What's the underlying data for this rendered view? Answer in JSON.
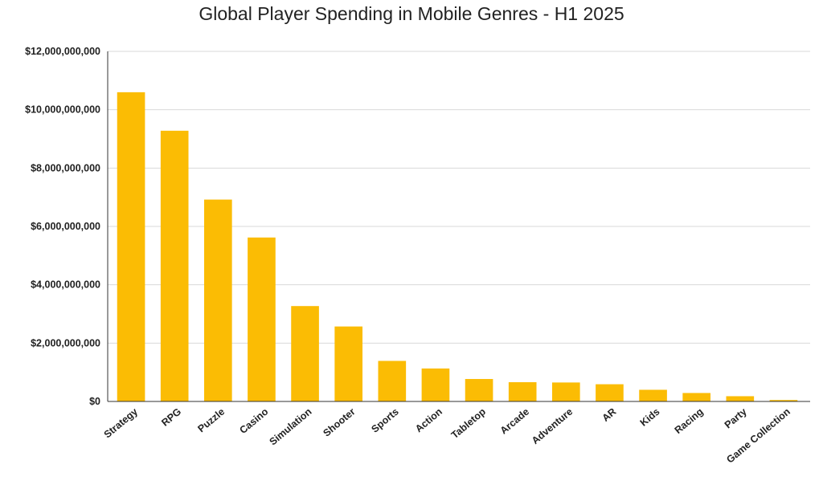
{
  "chart_data": {
    "type": "bar",
    "title": "Global Player Spending in Mobile Genres - H1 2025",
    "xlabel": "",
    "ylabel": "",
    "ylim": [
      0,
      12000000000
    ],
    "yticks": [
      0,
      2000000000,
      4000000000,
      6000000000,
      8000000000,
      10000000000,
      12000000000
    ],
    "ytick_labels": [
      "$0",
      "$2,000,000,000",
      "$4,000,000,000",
      "$6,000,000,000",
      "$8,000,000,000",
      "$10,000,000,000",
      "$12,000,000,000"
    ],
    "categories": [
      "Strategy",
      "RPG",
      "Puzzle",
      "Casino",
      "Simulation",
      "Shooter",
      "Sports",
      "Action",
      "Tabletop",
      "Arcade",
      "Adventure",
      "AR",
      "Kids",
      "Racing",
      "Party",
      "Game Collection"
    ],
    "values": [
      10600000000,
      9280000000,
      6920000000,
      5620000000,
      3270000000,
      2570000000,
      1390000000,
      1130000000,
      770000000,
      660000000,
      650000000,
      590000000,
      400000000,
      290000000,
      180000000,
      50000000
    ],
    "bar_color": "#FBBC04",
    "grid": true,
    "legend": "none"
  }
}
